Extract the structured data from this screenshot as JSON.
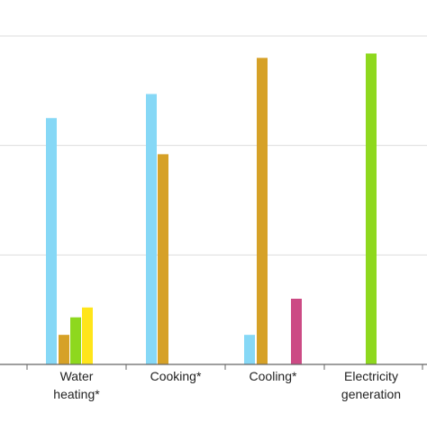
{
  "chart_data": {
    "type": "bar",
    "categories": [
      "Water\nheating*",
      "Cooking*",
      "Cooling*",
      "Electricity\ngeneration"
    ],
    "ylim": [
      0,
      300
    ],
    "gridlines": [
      100,
      200,
      300
    ],
    "grid": true,
    "legend": "none",
    "series": [
      {
        "color": "#86d8f6",
        "values": [
          225,
          247,
          27,
          null
        ]
      },
      {
        "color": "#d6a127",
        "values": [
          27,
          192,
          280,
          null
        ]
      },
      {
        "color": "#8ed81e",
        "values": [
          43,
          null,
          null,
          284
        ]
      },
      {
        "color": "#ffe51a",
        "values": [
          52,
          null,
          null,
          null
        ]
      },
      {
        "color": "#cc4a84",
        "values": [
          null,
          null,
          60,
          null
        ]
      }
    ],
    "colors": {
      "axis": "#666666",
      "grid": "#dddddd",
      "text": "#222222"
    }
  }
}
